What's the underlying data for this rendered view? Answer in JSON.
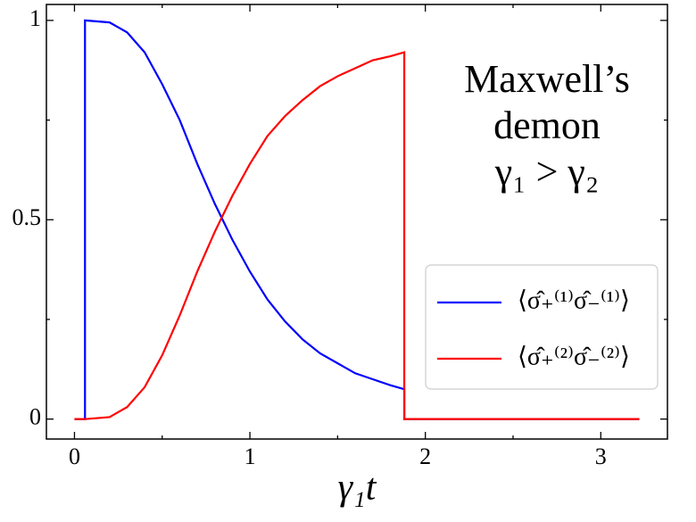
{
  "chart_data": {
    "type": "line",
    "annotation": [
      "Maxwell’s",
      "demon",
      "γ₁ > γ₂"
    ],
    "x_label": "γ₁t",
    "x": [
      0,
      0.06,
      0.06,
      0.2,
      0.3,
      0.4,
      0.5,
      0.6,
      0.7,
      0.8,
      0.9,
      1.0,
      1.1,
      1.2,
      1.3,
      1.4,
      1.5,
      1.6,
      1.7,
      1.8,
      1.88,
      1.88,
      3.22
    ],
    "series": [
      {
        "name": "⟨σ̂₊⁽¹⁾σ̂₋⁽¹⁾⟩",
        "color": "#0000ff",
        "values": [
          0,
          0,
          1,
          0.995,
          0.97,
          0.92,
          0.84,
          0.75,
          0.64,
          0.54,
          0.45,
          0.37,
          0.3,
          0.245,
          0.2,
          0.165,
          0.14,
          0.115,
          0.1,
          0.085,
          0.075,
          0,
          0
        ]
      },
      {
        "name": "⟨σ̂₊⁽²⁾σ̂₋⁽²⁾⟩",
        "color": "#ff0000",
        "values": [
          0,
          0,
          0,
          0.005,
          0.03,
          0.08,
          0.16,
          0.26,
          0.37,
          0.47,
          0.56,
          0.64,
          0.71,
          0.76,
          0.8,
          0.835,
          0.86,
          0.88,
          0.9,
          0.91,
          0.92,
          0,
          0
        ]
      }
    ],
    "xlim": [
      -0.16,
      3.38
    ],
    "ylim": [
      -0.05,
      1.04
    ],
    "xticks": [
      0,
      1,
      2,
      3
    ],
    "yticks": [
      0,
      0.5,
      1
    ],
    "xminorticks": [
      0.5,
      1.5,
      2.5
    ],
    "yminorticks": [
      0.25,
      0.75
    ],
    "legend": "lower right"
  }
}
